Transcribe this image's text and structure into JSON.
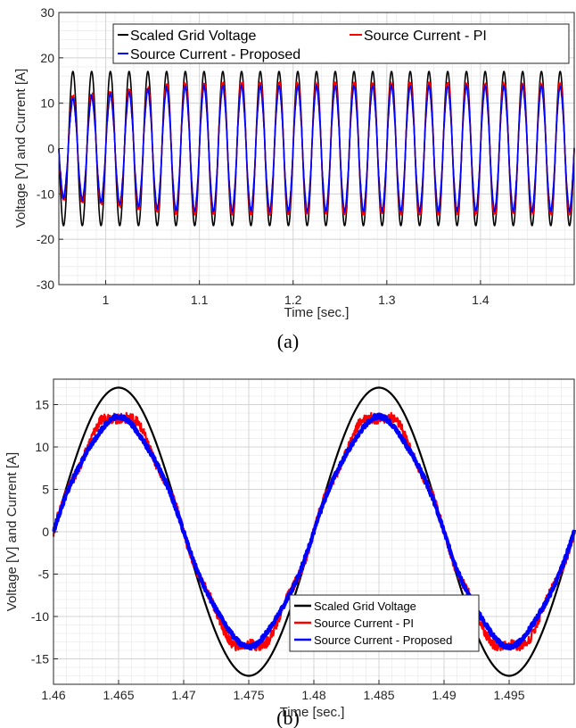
{
  "colors": {
    "voltage": "#000000",
    "pi": "#ff0000",
    "proposed": "#0000ff",
    "grid_minor": "#ececec",
    "grid_major": "#d4d4d4",
    "axis": "#262626"
  },
  "chart_data": [
    {
      "type": "line",
      "caption": "(a)",
      "xlabel": "Time [sec.]",
      "ylabel": "Voltage [V] and Current [A]",
      "xlim": [
        0.95,
        1.5
      ],
      "ylim": [
        -30,
        30
      ],
      "xticks": [
        1,
        1.1,
        1.2,
        1.3,
        1.4
      ],
      "xtick_labels": [
        "1",
        "1.1",
        "1.2",
        "1.3",
        "1.4"
      ],
      "yticks": [
        -30,
        -20,
        -10,
        0,
        10,
        20,
        30
      ],
      "ytick_labels": [
        "-30",
        "-20",
        "-10",
        "0",
        "10",
        "20",
        "30"
      ],
      "grid": true,
      "minor_grid": true,
      "legend_position": "top",
      "frequency_hz": 50,
      "series": [
        {
          "name": "Scaled Grid Voltage",
          "color": "#000000",
          "amplitude": 17
        },
        {
          "name": "Source Current - PI",
          "color": "#ff0000",
          "amplitude_start": 11,
          "amplitude_steady": 14.5
        },
        {
          "name": "Source Current - Proposed",
          "color": "#0000ff",
          "amplitude_start": 10.5,
          "amplitude_steady": 13.5
        }
      ]
    },
    {
      "type": "line",
      "caption": "(b)",
      "xlabel": "Time [sec.]",
      "ylabel": "Voltage [V] and Current [A]",
      "xlim": [
        1.46,
        1.5
      ],
      "ylim": [
        -18,
        18
      ],
      "xticks": [
        1.46,
        1.465,
        1.47,
        1.475,
        1.48,
        1.485,
        1.49,
        1.495
      ],
      "xtick_labels": [
        "1.46",
        "1.465",
        "1.47",
        "1.475",
        "1.48",
        "1.485",
        "1.49",
        "1.495"
      ],
      "yticks": [
        -15,
        -10,
        -5,
        0,
        5,
        10,
        15
      ],
      "ytick_labels": [
        "-15",
        "-10",
        "-5",
        "0",
        "5",
        "10",
        "15"
      ],
      "grid": true,
      "minor_grid": true,
      "legend_position": "bottom-right",
      "frequency_hz": 50,
      "series": [
        {
          "name": "Scaled Grid Voltage",
          "color": "#000000",
          "amplitude": 17
        },
        {
          "name": "Source Current - PI",
          "color": "#ff0000",
          "amplitude": 13.8
        },
        {
          "name": "Source Current - Proposed",
          "color": "#0000ff",
          "amplitude": 13.3
        }
      ]
    }
  ]
}
